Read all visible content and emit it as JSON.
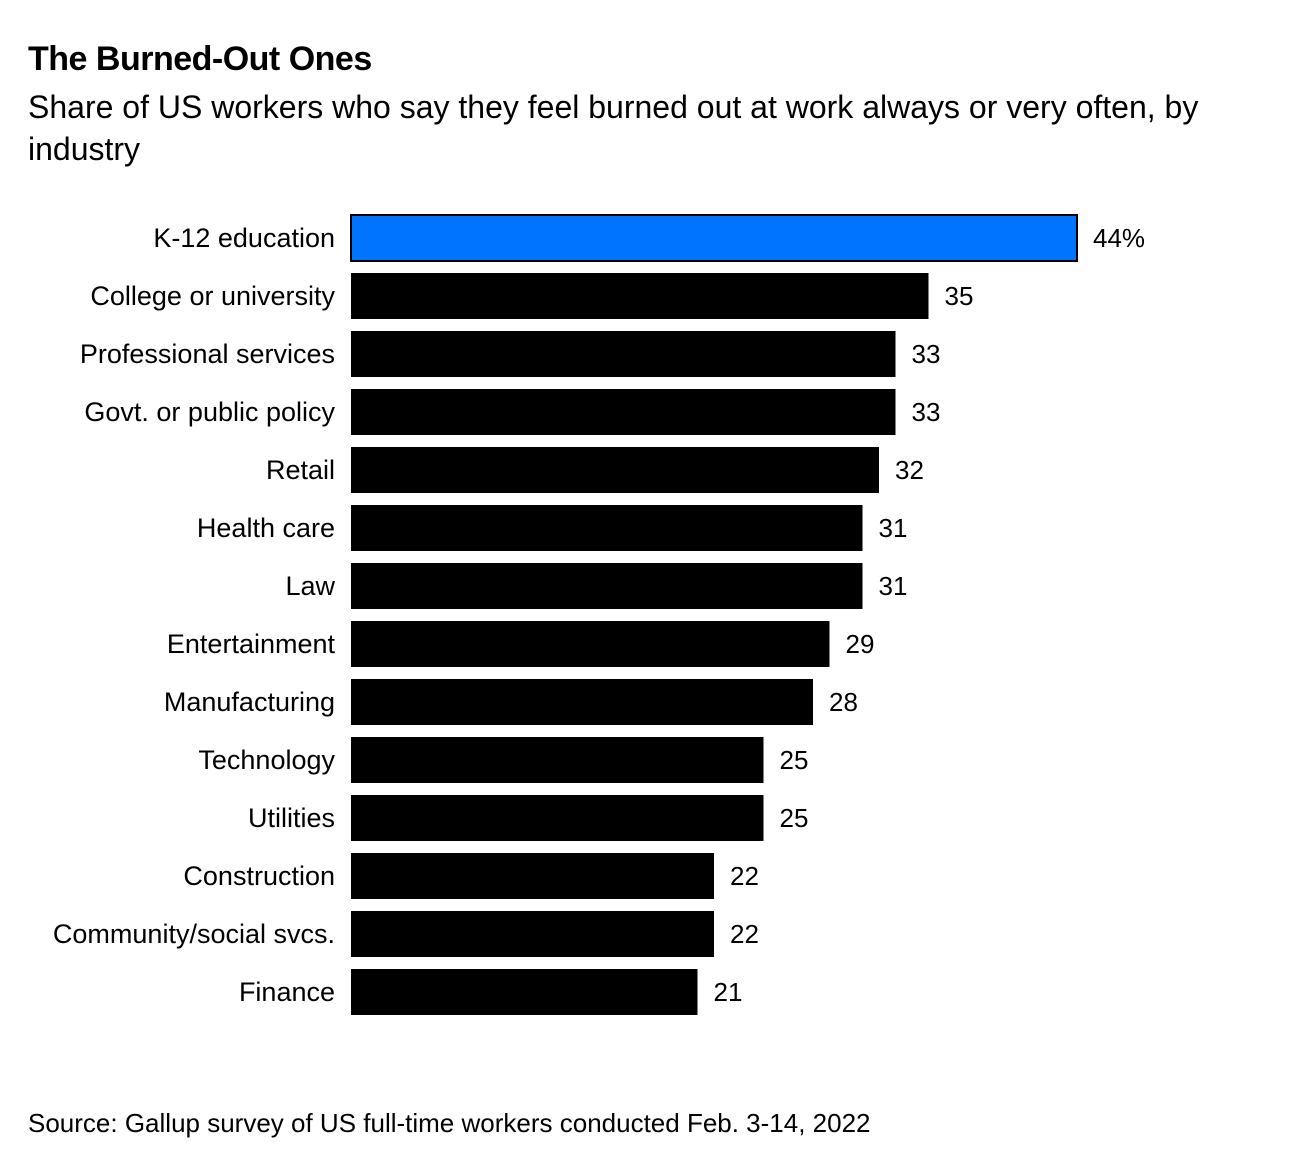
{
  "title": "The Burned-Out Ones",
  "subtitle": "Share of US workers who say they feel burned out at work always or very often, by industry",
  "source": "Source: Gallup survey of US full-time workers conducted Feb. 3-14, 2022",
  "colors": {
    "highlight": "#0073ff",
    "bar": "#000000"
  },
  "chart_data": {
    "type": "bar",
    "orientation": "horizontal",
    "categories": [
      "K-12 education",
      "College or university",
      "Professional services",
      "Govt. or public policy",
      "Retail",
      "Health care",
      "Law",
      "Entertainment",
      "Manufacturing",
      "Technology",
      "Utilities",
      "Construction",
      "Community/social svcs.",
      "Finance"
    ],
    "values": [
      44,
      35,
      33,
      33,
      32,
      31,
      31,
      29,
      28,
      25,
      25,
      22,
      22,
      21
    ],
    "value_labels": [
      "44%",
      "35",
      "33",
      "33",
      "32",
      "31",
      "31",
      "29",
      "28",
      "25",
      "25",
      "22",
      "22",
      "21"
    ],
    "highlight_category": "K-12 education",
    "unit": "%",
    "xlim": [
      0,
      44
    ],
    "grid": false,
    "legend": "none"
  }
}
